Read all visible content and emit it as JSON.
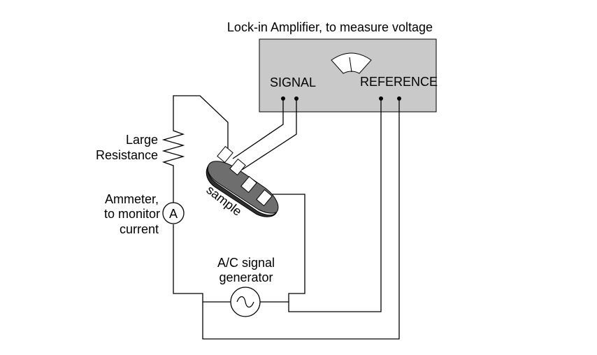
{
  "labels": {
    "amplifier_title": "Lock-in Amplifier, to measure voltage",
    "signal": "SIGNAL",
    "reference": "REFERENCE",
    "large_resistance": [
      "Large",
      "Resistance"
    ],
    "ammeter": [
      "Ammeter,",
      "to monitor",
      "current"
    ],
    "ammeter_symbol": "A",
    "sample": "sample",
    "generator": [
      "A/C signal",
      "generator"
    ]
  },
  "colors": {
    "amplifier_box": "#c9c9c9",
    "sample_top": "#6e6e6e",
    "sample_edge": "#2f2f2f",
    "contact_fill": "#ffffff",
    "line": "#000000"
  }
}
